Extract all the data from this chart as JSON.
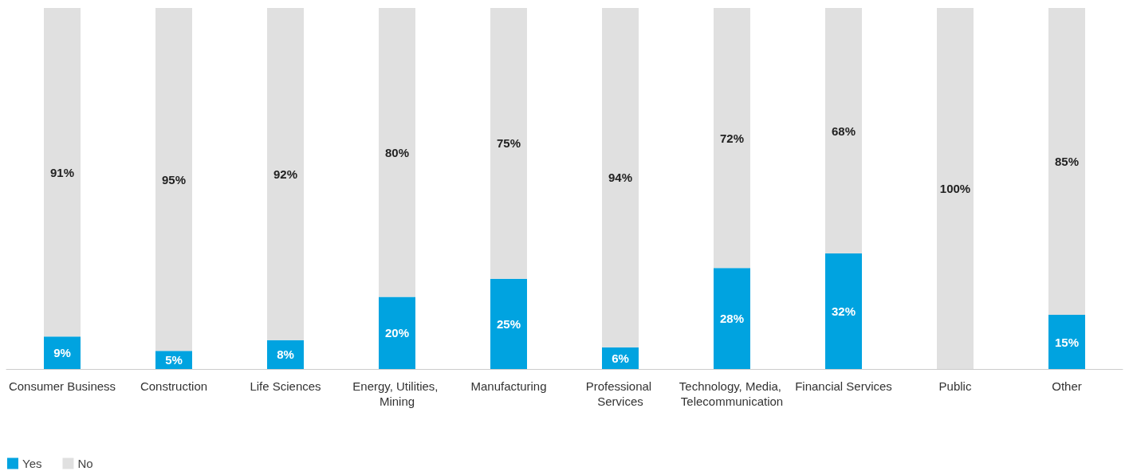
{
  "chart_data": {
    "type": "bar",
    "stacked": true,
    "categories": [
      "Consumer Business",
      "Construction",
      "Life Sciences",
      "Energy, Utilities, Mining",
      "Manufacturing",
      "Professional Services",
      "Technology, Media, Telecommunication",
      "Financial Services",
      "Public",
      "Other"
    ],
    "series": [
      {
        "name": "Yes",
        "color": "#00a3e0",
        "values": [
          9,
          5,
          8,
          20,
          25,
          6,
          28,
          32,
          0,
          15
        ],
        "value_labels": [
          "9%",
          "5%",
          "8%",
          "20%",
          "25%",
          "6%",
          "28%",
          "32%",
          null,
          "15%"
        ]
      },
      {
        "name": "No",
        "color": "#e0e0e0",
        "values": [
          91,
          95,
          92,
          80,
          75,
          94,
          72,
          68,
          100,
          85
        ],
        "value_labels": [
          "91%",
          "95%",
          "92%",
          "80%",
          "75%",
          "94%",
          "72%",
          "68%",
          "100%",
          "85%"
        ]
      }
    ],
    "ylim": [
      0,
      100
    ],
    "tick_labels": "x",
    "legend": "bottom left"
  }
}
